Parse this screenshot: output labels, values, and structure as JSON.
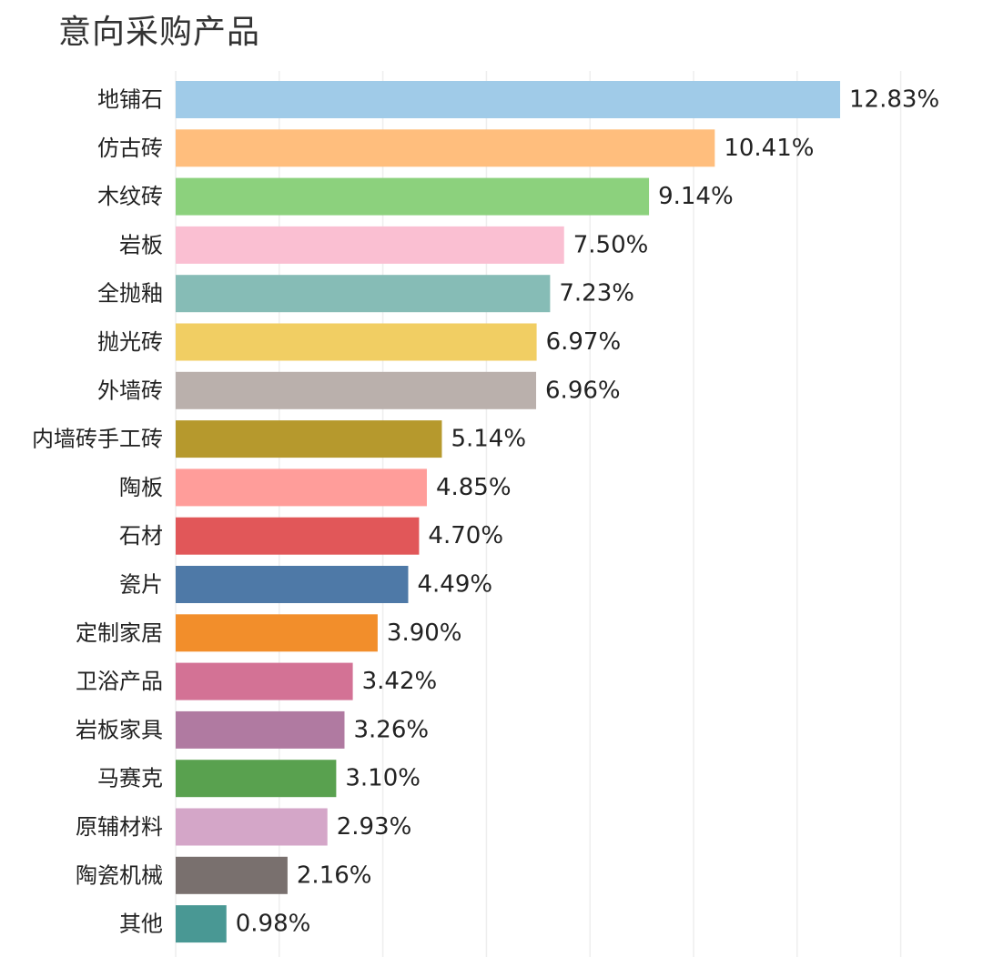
{
  "chart_data": {
    "type": "bar",
    "orientation": "horizontal",
    "title": "意向采购产品",
    "xlabel": "",
    "ylabel": "",
    "xlim": [
      0,
      14
    ],
    "grid": true,
    "categories": [
      "地铺石",
      "仿古砖",
      "木纹砖",
      "岩板",
      "全抛釉",
      "抛光砖",
      "外墙砖",
      "内墙砖手工砖",
      "陶板",
      "石材",
      "瓷片",
      "定制家居",
      "卫浴产品",
      "岩板家具",
      "马赛克",
      "原辅材料",
      "陶瓷机械",
      "其他"
    ],
    "values": [
      12.83,
      10.41,
      9.14,
      7.5,
      7.23,
      6.97,
      6.96,
      5.14,
      4.85,
      4.7,
      4.49,
      3.9,
      3.42,
      3.26,
      3.1,
      2.93,
      2.16,
      0.98
    ],
    "value_labels": [
      "12.83%",
      "10.41%",
      "9.14%",
      "7.50%",
      "7.23%",
      "6.97%",
      "6.96%",
      "5.14%",
      "4.85%",
      "4.70%",
      "4.49%",
      "3.90%",
      "3.42%",
      "3.26%",
      "3.10%",
      "2.93%",
      "2.16%",
      "0.98%"
    ],
    "colors": [
      "#A0CBE8",
      "#FFBE7D",
      "#8CD17D",
      "#FABFD2",
      "#86BCB6",
      "#F1CE63",
      "#BAB0AC",
      "#B6992D",
      "#FF9D9A",
      "#E15759",
      "#4E79A7",
      "#F28E2B",
      "#D37295",
      "#B07AA1",
      "#59A14F",
      "#D4A6C8",
      "#79706E",
      "#499894"
    ]
  }
}
